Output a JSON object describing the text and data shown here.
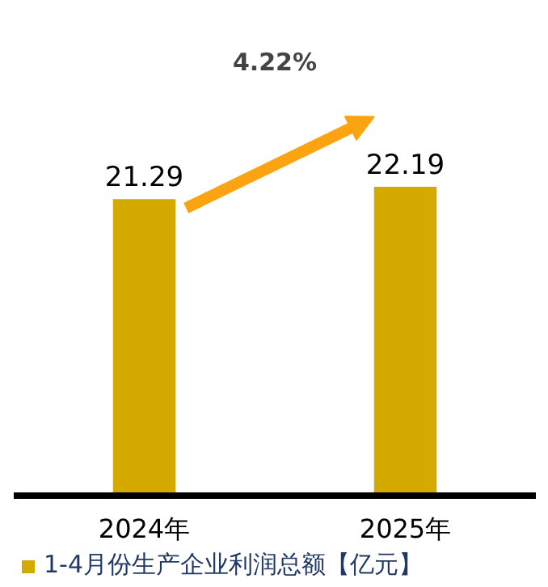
{
  "chart_data": {
    "type": "bar",
    "categories": [
      "2024年",
      "2025年"
    ],
    "series": [
      {
        "name": "1-4月份生产企业利润总额【亿元】",
        "color": "#d4aa00",
        "values": [
          21.29,
          22.19
        ]
      }
    ],
    "data_labels": true,
    "legend": "bottom",
    "annotations": [
      "4.22%"
    ]
  }
}
